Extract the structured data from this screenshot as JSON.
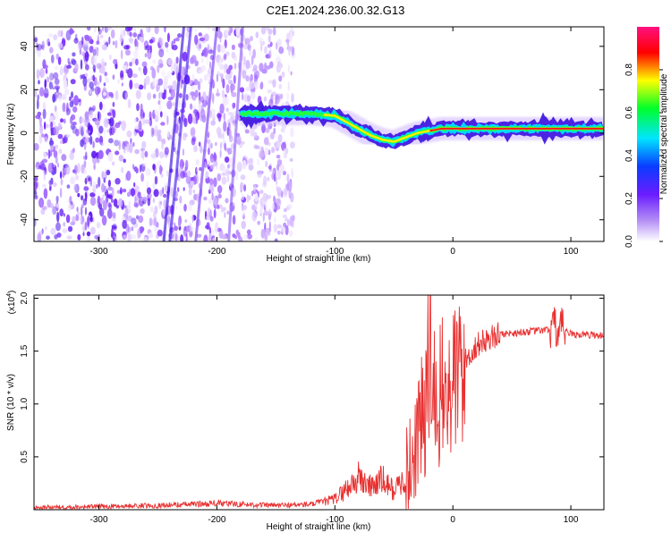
{
  "title": "C2E1.2024.236.00.32.G13",
  "chart_data": [
    {
      "type": "heatmap",
      "xlabel": "Height of straight line (km)",
      "ylabel": "Frequency (Hz)",
      "xlim": [
        -355,
        128
      ],
      "ylim": [
        -50,
        49
      ],
      "x_ticks": [
        -300,
        -200,
        -100,
        0,
        100
      ],
      "y_ticks": [
        -40,
        -20,
        0,
        20,
        40
      ],
      "colorbar": {
        "label": "Normalized spectral amplitude",
        "range": [
          0,
          1
        ],
        "ticks": [
          0.0,
          0.2,
          0.4,
          0.6,
          0.8
        ],
        "tick_labels": [
          "0.0",
          "0.2",
          "0.4",
          "0.6",
          "0.8"
        ],
        "colors": [
          "#ffffff",
          "#9b59f5",
          "#1a00ff",
          "#00e5ff",
          "#00ff2a",
          "#ffff00",
          "#ff0000",
          "#ff0080"
        ]
      },
      "noise_region_x": [
        -355,
        -135
      ],
      "ridge": {
        "x": [
          -180,
          -160,
          -140,
          -120,
          -100,
          -90,
          -80,
          -70,
          -60,
          -50,
          -40,
          -30,
          -20,
          -10,
          0,
          20,
          40,
          60,
          80,
          100,
          128
        ],
        "y": [
          9,
          9,
          9,
          9,
          8,
          5,
          2,
          -1,
          -3,
          -4,
          -2,
          0,
          1,
          2,
          2,
          2,
          2,
          2,
          2,
          2,
          2
        ]
      }
    },
    {
      "type": "line",
      "xlabel": "Height of straight line (km)",
      "ylabel": "SNR (10 * v/v)",
      "y_multiplier": "(x10",
      "y_multiplier_exp": "4",
      "xlim": [
        -355,
        128
      ],
      "ylim": [
        0,
        2.03
      ],
      "x_ticks": [
        -300,
        -200,
        -100,
        0,
        100
      ],
      "y_ticks": [
        0.5,
        1.0,
        1.5,
        2.0
      ],
      "y_tick_labels": [
        "0.5",
        "1.0",
        "1.5",
        "2.0"
      ],
      "line_color": "#e83030",
      "series": [
        {
          "x": [
            -355,
            -300,
            -250,
            -200,
            -150,
            -120,
            -100,
            -90,
            -80,
            -70,
            -60,
            -50,
            -40,
            -35,
            -30,
            -25,
            -20,
            -15,
            -10,
            -5,
            0,
            10,
            20,
            30,
            40,
            60,
            80,
            90,
            100,
            128
          ],
          "values": [
            0.02,
            0.03,
            0.04,
            0.06,
            0.04,
            0.05,
            0.1,
            0.2,
            0.3,
            0.22,
            0.28,
            0.18,
            0.3,
            0.45,
            0.75,
            0.85,
            1.0,
            1.05,
            1.1,
            1.05,
            1.2,
            1.4,
            1.55,
            1.62,
            1.66,
            1.68,
            1.7,
            1.72,
            1.66,
            1.65
          ]
        }
      ]
    }
  ]
}
